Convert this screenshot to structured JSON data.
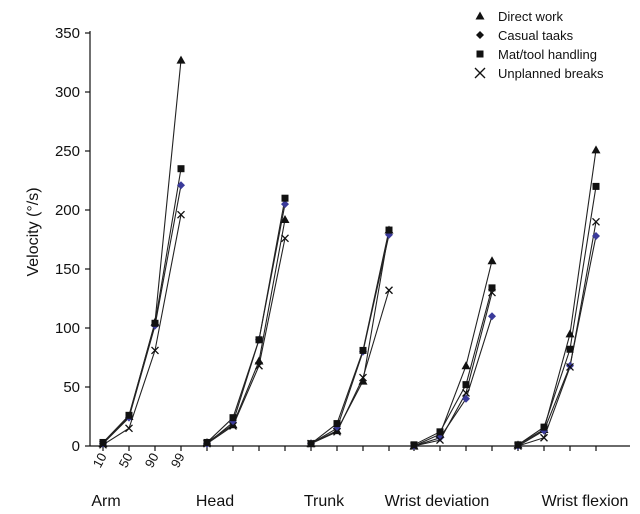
{
  "chart_data": {
    "type": "line",
    "title": "",
    "xlabel": "",
    "ylabel": "Velocity (°/s)",
    "ylim": [
      0,
      350
    ],
    "yticks": [
      0,
      50,
      100,
      150,
      200,
      250,
      300,
      350
    ],
    "percentiles": [
      "10",
      "50",
      "90",
      "99"
    ],
    "categories": [
      "Arm",
      "Head",
      "Trunk",
      "Wrist deviation",
      "Wrist flexion"
    ],
    "grid": false,
    "legend_position": "top-right",
    "series": [
      {
        "name": "Direct work",
        "marker": "triangle",
        "color": "#111111",
        "values": [
          [
            2,
            25,
            105,
            327
          ],
          [
            3,
            18,
            72,
            192
          ],
          [
            2,
            13,
            55,
            183
          ],
          [
            0,
            10,
            68,
            157
          ],
          [
            1,
            14,
            95,
            251
          ]
        ]
      },
      {
        "name": "Casual taaks",
        "marker": "diamond",
        "color": "#3a3a9a",
        "values": [
          [
            2,
            24,
            102,
            221
          ],
          [
            2,
            20,
            90,
            205
          ],
          [
            2,
            15,
            80,
            179
          ],
          [
            0,
            7,
            40,
            110
          ],
          [
            0,
            13,
            68,
            178
          ]
        ]
      },
      {
        "name": "Mat/tool handling",
        "marker": "square",
        "color": "#111111",
        "values": [
          [
            3,
            26,
            104,
            235
          ],
          [
            3,
            24,
            90,
            210
          ],
          [
            2,
            19,
            81,
            183
          ],
          [
            1,
            12,
            52,
            134
          ],
          [
            1,
            16,
            82,
            220
          ]
        ]
      },
      {
        "name": "Unplanned breaks",
        "marker": "x",
        "color": "#111111",
        "values": [
          [
            1,
            15,
            81,
            196
          ],
          [
            2,
            17,
            68,
            176
          ],
          [
            2,
            12,
            58,
            132
          ],
          [
            0,
            5,
            45,
            130
          ],
          [
            0,
            7,
            67,
            190
          ]
        ]
      }
    ]
  }
}
